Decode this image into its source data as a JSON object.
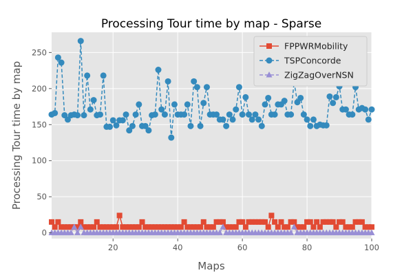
{
  "chart_data": {
    "type": "line",
    "title": "Processing Tour time by map - Sparse",
    "xlabel": "Maps",
    "ylabel": "Processing Tour time by map",
    "xlim": [
      1,
      100
    ],
    "ylim": [
      -8,
      278
    ],
    "x_ticks": [
      20,
      40,
      60,
      80,
      100
    ],
    "y_ticks": [
      0,
      50,
      100,
      150,
      200,
      250
    ],
    "grid": true,
    "legend_position": "top-right",
    "colors": {
      "background": "#e5e5e5",
      "grid": "#ffffff"
    },
    "x": [
      1,
      2,
      3,
      4,
      5,
      6,
      7,
      8,
      9,
      10,
      11,
      12,
      13,
      14,
      15,
      16,
      17,
      18,
      19,
      20,
      21,
      22,
      23,
      24,
      25,
      26,
      27,
      28,
      29,
      30,
      31,
      32,
      33,
      34,
      35,
      36,
      37,
      38,
      39,
      40,
      41,
      42,
      43,
      44,
      45,
      46,
      47,
      48,
      49,
      50,
      51,
      52,
      53,
      54,
      55,
      56,
      57,
      58,
      59,
      60,
      61,
      62,
      63,
      64,
      65,
      66,
      67,
      68,
      69,
      70,
      71,
      72,
      73,
      74,
      75,
      76,
      77,
      78,
      79,
      80,
      81,
      82,
      83,
      84,
      85,
      86,
      87,
      88,
      89,
      90,
      91,
      92,
      93,
      94,
      95,
      96,
      97,
      98,
      99,
      100
    ],
    "series": [
      {
        "name": "FPPWRMobility",
        "color": "#e24a33",
        "marker": "square",
        "linestyle": "solid",
        "values": [
          15,
          8,
          15,
          8,
          8,
          8,
          8,
          8,
          8,
          15,
          8,
          8,
          8,
          8,
          15,
          8,
          8,
          8,
          8,
          8,
          8,
          24,
          8,
          8,
          8,
          8,
          8,
          8,
          15,
          8,
          8,
          8,
          8,
          8,
          8,
          8,
          8,
          8,
          8,
          8,
          8,
          15,
          8,
          8,
          8,
          8,
          8,
          15,
          8,
          8,
          8,
          15,
          15,
          15,
          8,
          8,
          8,
          8,
          15,
          15,
          8,
          15,
          15,
          15,
          15,
          15,
          15,
          8,
          24,
          15,
          8,
          15,
          8,
          8,
          15,
          15,
          8,
          8,
          8,
          15,
          15,
          8,
          15,
          8,
          15,
          15,
          15,
          15,
          8,
          15,
          15,
          8,
          8,
          8,
          15,
          15,
          15,
          8,
          8,
          8
        ]
      },
      {
        "name": "TSPConcorde",
        "color": "#348abd",
        "marker": "circle",
        "linestyle": "dashed",
        "values": [
          164,
          166,
          243,
          236,
          163,
          157,
          163,
          164,
          163,
          266,
          163,
          218,
          171,
          184,
          163,
          164,
          218,
          147,
          147,
          156,
          149,
          156,
          156,
          164,
          142,
          148,
          164,
          178,
          148,
          148,
          142,
          163,
          164,
          226,
          171,
          164,
          210,
          132,
          178,
          164,
          164,
          164,
          178,
          148,
          210,
          202,
          148,
          180,
          202,
          164,
          164,
          164,
          157,
          157,
          148,
          164,
          157,
          171,
          202,
          164,
          188,
          164,
          157,
          164,
          157,
          148,
          178,
          187,
          164,
          164,
          178,
          178,
          183,
          164,
          164,
          209,
          181,
          187,
          164,
          157,
          148,
          157,
          148,
          150,
          149,
          149,
          189,
          180,
          188,
          203,
          171,
          171,
          164,
          164,
          202,
          171,
          173,
          171,
          157,
          171
        ]
      },
      {
        "name": "ZigZagOverNSN",
        "color": "#988ed5",
        "marker": "triangle",
        "linestyle": "dashed",
        "values": [
          0,
          0,
          0,
          0,
          0,
          0,
          0,
          8,
          0,
          8,
          0,
          0,
          0,
          0,
          0,
          0,
          0,
          0,
          0,
          0,
          0,
          0,
          0,
          0,
          0,
          0,
          0,
          0,
          0,
          0,
          0,
          0,
          0,
          0,
          0,
          0,
          0,
          0,
          0,
          0,
          0,
          0,
          0,
          0,
          0,
          0,
          0,
          0,
          0,
          0,
          0,
          0,
          0,
          8,
          0,
          0,
          0,
          0,
          0,
          0,
          0,
          0,
          0,
          0,
          0,
          0,
          0,
          0,
          0,
          0,
          0,
          0,
          0,
          0,
          0,
          8,
          0,
          0,
          0,
          0,
          0,
          0,
          0,
          0,
          0,
          0,
          0,
          0,
          0,
          0,
          0,
          0,
          0,
          0,
          0,
          0,
          0,
          0,
          0,
          0
        ]
      }
    ]
  }
}
